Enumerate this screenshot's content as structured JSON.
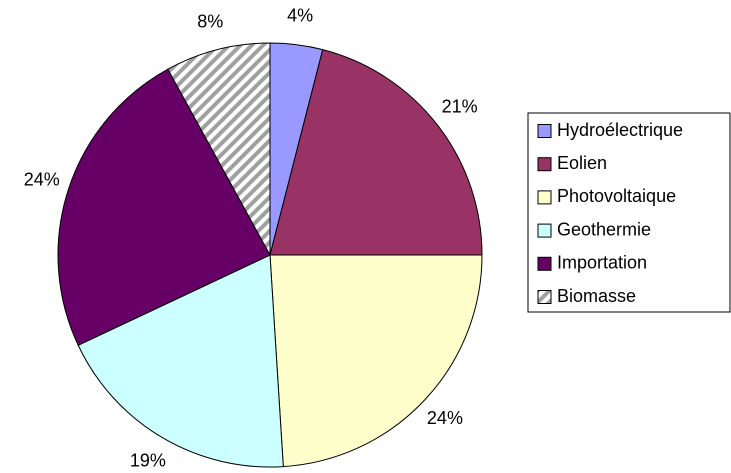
{
  "chart_data": {
    "type": "pie",
    "categories": [
      "Hydroélectrique",
      "Eolien",
      "Photovoltaique",
      "Geothermie",
      "Importation",
      "Biomasse"
    ],
    "values": [
      4,
      21,
      24,
      19,
      24,
      8
    ],
    "value_labels": [
      "4%",
      "21%",
      "24%",
      "19%",
      "24%",
      "8%"
    ],
    "colors": [
      "#9999ff",
      "#993366",
      "#ffffcc",
      "#ccffff",
      "#660066",
      "#ffffff"
    ],
    "hatched": [
      false,
      false,
      false,
      false,
      false,
      true
    ],
    "legend": "right"
  }
}
